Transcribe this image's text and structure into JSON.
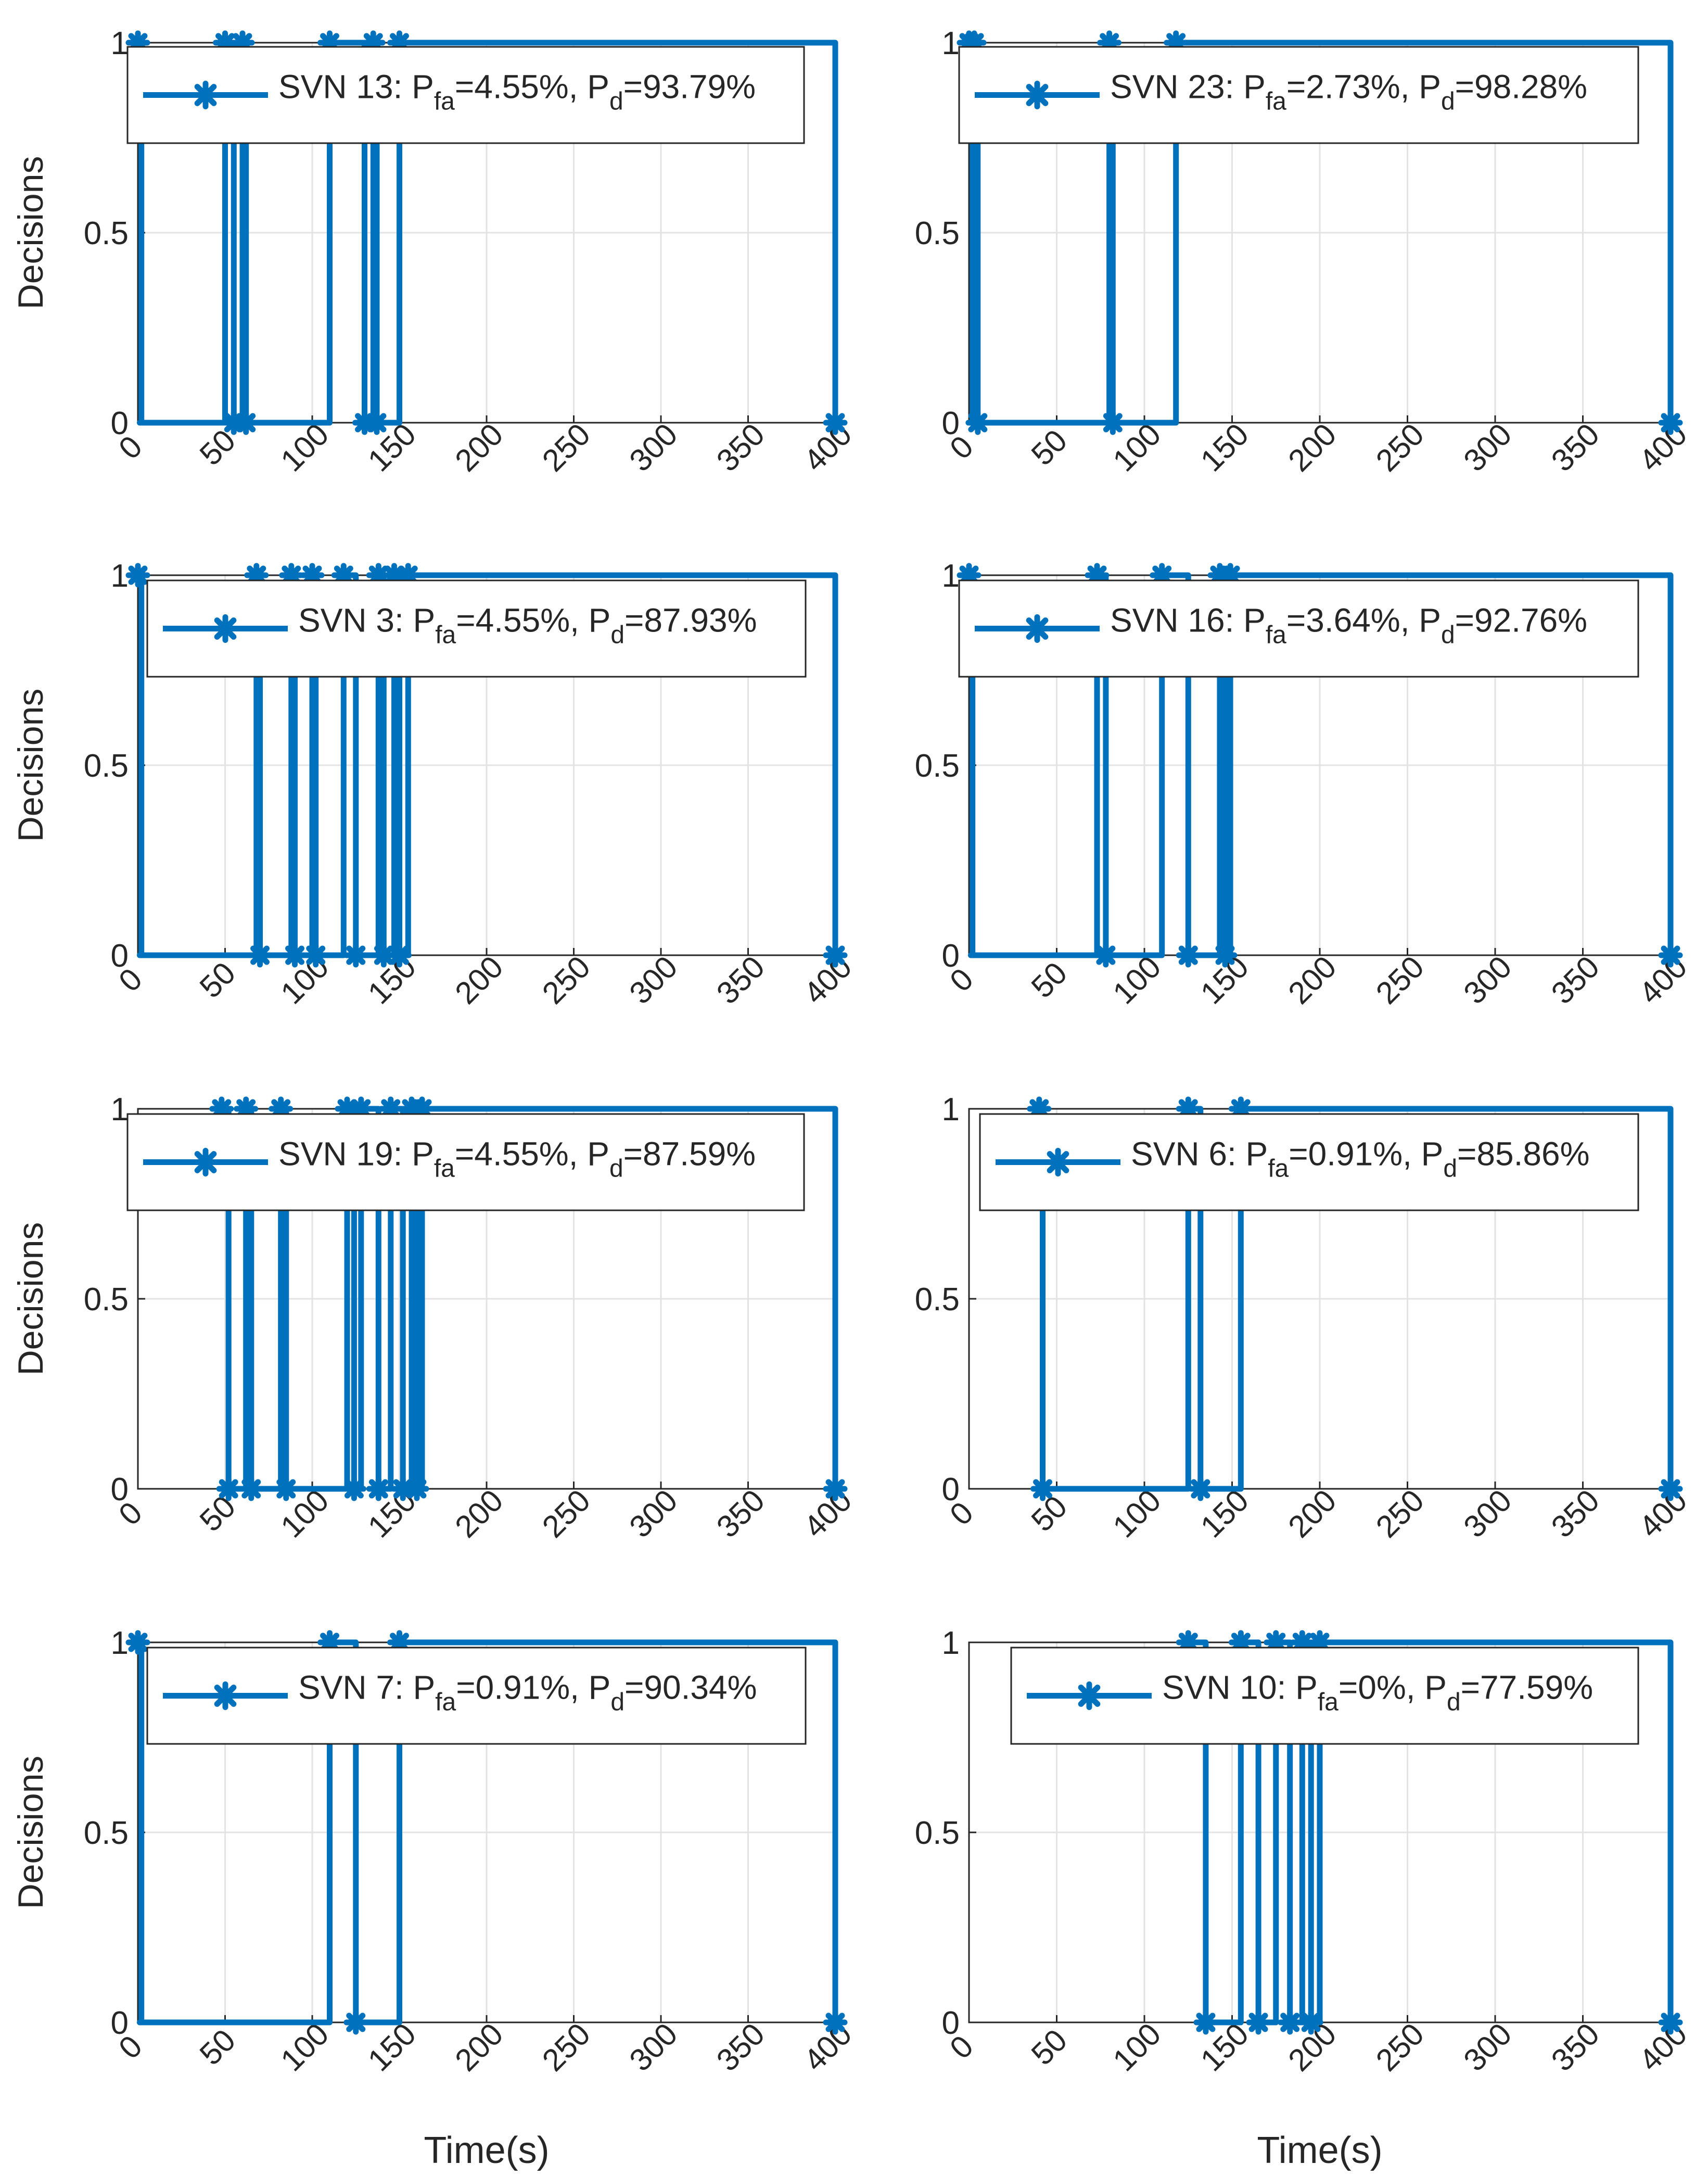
{
  "figure": {
    "ylabel": "Decisions",
    "xlabel": "Time(s)",
    "series_color": "#0072BD"
  },
  "chart_data": [
    {
      "type": "line",
      "marker": "asterisk",
      "legend": {
        "name": "SVN 13",
        "pfa": "4.55%",
        "pd": "93.79%"
      },
      "xlim": [
        0,
        400
      ],
      "ylim": [
        0,
        1
      ],
      "xticks": [
        0,
        50,
        100,
        150,
        200,
        250,
        300,
        350,
        400
      ],
      "yticks": [
        0,
        0.5,
        1
      ],
      "xlabel": "",
      "ylabel": "Decisions",
      "segments": [
        [
          0,
          0,
          1
        ],
        [
          2,
          1,
          0
        ],
        [
          50,
          50,
          1
        ],
        [
          55,
          55,
          0
        ],
        [
          60,
          60,
          1
        ],
        [
          62,
          62,
          0
        ],
        [
          110,
          110,
          1
        ],
        [
          130,
          130,
          0
        ],
        [
          135,
          135,
          1
        ],
        [
          137,
          137,
          0
        ],
        [
          150,
          150,
          1
        ],
        [
          400,
          400,
          0
        ]
      ]
    },
    {
      "type": "line",
      "marker": "asterisk",
      "legend": {
        "name": "SVN 23",
        "pfa": "2.73%",
        "pd": "98.28%"
      },
      "xlim": [
        0,
        400
      ],
      "ylim": [
        0,
        1
      ],
      "xticks": [
        0,
        50,
        100,
        150,
        200,
        250,
        300,
        350,
        400
      ],
      "yticks": [
        0,
        0.5,
        1
      ],
      "xlabel": "",
      "ylabel": "",
      "segments": [
        [
          0,
          0,
          1
        ],
        [
          2,
          1,
          0
        ],
        [
          3,
          3,
          1
        ],
        [
          5,
          5,
          0
        ],
        [
          80,
          80,
          1
        ],
        [
          82,
          82,
          0
        ],
        [
          118,
          118,
          1
        ],
        [
          400,
          400,
          0
        ]
      ]
    },
    {
      "type": "line",
      "marker": "asterisk",
      "legend": {
        "name": "SVN 3",
        "pfa": "4.55%",
        "pd": "87.93%"
      },
      "xlim": [
        0,
        400
      ],
      "ylim": [
        0,
        1
      ],
      "xticks": [
        0,
        50,
        100,
        150,
        200,
        250,
        300,
        350,
        400
      ],
      "yticks": [
        0,
        0.5,
        1
      ],
      "xlabel": "",
      "ylabel": "Decisions",
      "segments": [
        [
          0,
          0,
          1
        ],
        [
          2,
          1,
          0
        ],
        [
          68,
          68,
          1
        ],
        [
          70,
          70,
          0
        ],
        [
          88,
          88,
          1
        ],
        [
          90,
          90,
          0
        ],
        [
          100,
          100,
          1
        ],
        [
          102,
          102,
          0
        ],
        [
          118,
          118,
          1
        ],
        [
          125,
          125,
          0
        ],
        [
          138,
          138,
          1
        ],
        [
          141,
          141,
          0
        ],
        [
          147,
          147,
          1
        ],
        [
          150,
          150,
          0
        ],
        [
          155,
          155,
          1
        ],
        [
          400,
          400,
          0
        ]
      ]
    },
    {
      "type": "line",
      "marker": "asterisk",
      "legend": {
        "name": "SVN 16",
        "pfa": "3.64%",
        "pd": "92.76%"
      },
      "xlim": [
        0,
        400
      ],
      "ylim": [
        0,
        1
      ],
      "xticks": [
        0,
        50,
        100,
        150,
        200,
        250,
        300,
        350,
        400
      ],
      "yticks": [
        0,
        0.5,
        1
      ],
      "xlabel": "",
      "ylabel": "",
      "segments": [
        [
          0,
          0,
          1
        ],
        [
          2,
          1,
          0
        ],
        [
          73,
          73,
          1
        ],
        [
          78,
          78,
          0
        ],
        [
          110,
          110,
          1
        ],
        [
          125,
          125,
          0
        ],
        [
          143,
          143,
          1
        ],
        [
          146,
          146,
          0
        ],
        [
          149,
          149,
          1
        ],
        [
          400,
          400,
          0
        ]
      ]
    },
    {
      "type": "line",
      "marker": "asterisk",
      "legend": {
        "name": "SVN 19",
        "pfa": "4.55%",
        "pd": "87.59%"
      },
      "xlim": [
        0,
        400
      ],
      "ylim": [
        0,
        1
      ],
      "xticks": [
        0,
        50,
        100,
        150,
        200,
        250,
        300,
        350,
        400
      ],
      "yticks": [
        0,
        0.5,
        1
      ],
      "xlabel": "",
      "ylabel": "Decisions",
      "segments": [
        [
          48,
          48,
          1
        ],
        [
          52,
          52,
          0
        ],
        [
          62,
          62,
          1
        ],
        [
          65,
          65,
          0
        ],
        [
          82,
          82,
          1
        ],
        [
          85,
          85,
          0
        ],
        [
          120,
          120,
          1
        ],
        [
          124,
          124,
          0
        ],
        [
          128,
          128,
          1
        ],
        [
          138,
          138,
          0
        ],
        [
          145,
          145,
          1
        ],
        [
          152,
          152,
          0
        ],
        [
          157,
          157,
          1
        ],
        [
          160,
          160,
          0
        ],
        [
          163,
          163,
          1
        ],
        [
          400,
          400,
          0
        ]
      ]
    },
    {
      "type": "line",
      "marker": "asterisk",
      "legend": {
        "name": "SVN 6",
        "pfa": "0.91%",
        "pd": "85.86%"
      },
      "xlim": [
        0,
        400
      ],
      "ylim": [
        0,
        1
      ],
      "xticks": [
        0,
        50,
        100,
        150,
        200,
        250,
        300,
        350,
        400
      ],
      "yticks": [
        0,
        0.5,
        1
      ],
      "xlabel": "",
      "ylabel": "",
      "segments": [
        [
          40,
          40,
          1
        ],
        [
          42,
          42,
          0
        ],
        [
          125,
          125,
          1
        ],
        [
          132,
          132,
          0
        ],
        [
          155,
          155,
          1
        ],
        [
          400,
          400,
          0
        ]
      ]
    },
    {
      "type": "line",
      "marker": "asterisk",
      "legend": {
        "name": "SVN 7",
        "pfa": "0.91%",
        "pd": "90.34%"
      },
      "xlim": [
        0,
        400
      ],
      "ylim": [
        0,
        1
      ],
      "xticks": [
        0,
        50,
        100,
        150,
        200,
        250,
        300,
        350,
        400
      ],
      "yticks": [
        0,
        0.5,
        1
      ],
      "xlabel": "Time(s)",
      "ylabel": "Decisions",
      "segments": [
        [
          0,
          0,
          1
        ],
        [
          2,
          1,
          0
        ],
        [
          110,
          110,
          1
        ],
        [
          125,
          125,
          0
        ],
        [
          150,
          150,
          1
        ],
        [
          400,
          400,
          0
        ]
      ]
    },
    {
      "type": "line",
      "marker": "asterisk",
      "legend": {
        "name": "SVN 10",
        "pfa": "0%",
        "pd": "77.59%"
      },
      "xlim": [
        0,
        400
      ],
      "ylim": [
        0,
        1
      ],
      "xticks": [
        0,
        50,
        100,
        150,
        200,
        250,
        300,
        350,
        400
      ],
      "yticks": [
        0,
        0.5,
        1
      ],
      "xlabel": "Time(s)",
      "ylabel": "",
      "segments": [
        [
          125,
          125,
          1
        ],
        [
          135,
          135,
          0
        ],
        [
          155,
          155,
          1
        ],
        [
          165,
          165,
          0
        ],
        [
          175,
          175,
          1
        ],
        [
          183,
          183,
          0
        ],
        [
          190,
          190,
          1
        ],
        [
          195,
          195,
          0
        ],
        [
          200,
          200,
          1
        ],
        [
          400,
          400,
          0
        ]
      ]
    }
  ]
}
